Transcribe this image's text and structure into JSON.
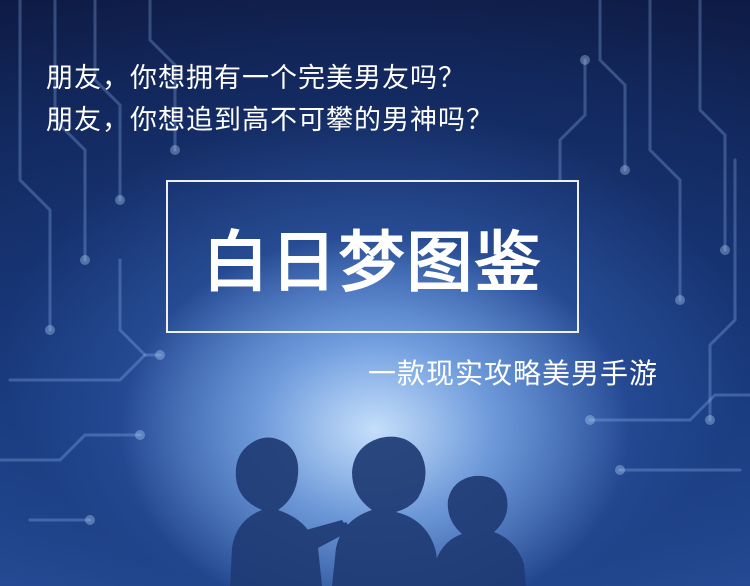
{
  "banner": {
    "line1": "朋友，你想拥有一个完美男友吗？",
    "line2": "朋友，你想追到高不可攀的男神吗？",
    "title": "白日梦图鉴",
    "subtitle": "一款现实攻略美男手游"
  },
  "colors": {
    "background_top": "#0e1b45",
    "background_bottom": "#274f9a",
    "glow": "#cde6ff",
    "circuit": "#9ec6ff",
    "text": "#ffffff",
    "silhouette": "#1f3b75"
  }
}
